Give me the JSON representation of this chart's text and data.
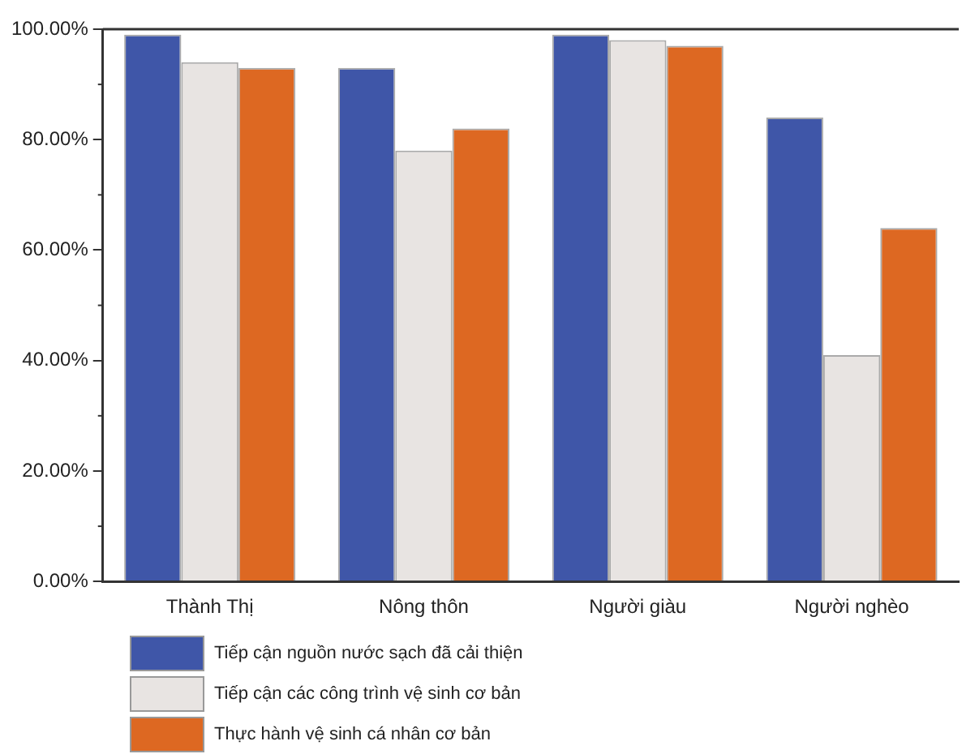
{
  "chart_data": {
    "type": "bar",
    "categories": [
      "Thành Thị",
      "Nông thôn",
      "Người giàu",
      "Người nghèo"
    ],
    "series": [
      {
        "name": "Tiếp cận nguồn nước sạch đã cải thiện",
        "color": "#3f56a8",
        "values": [
          99,
          93,
          99,
          84
        ]
      },
      {
        "name": "Tiếp cận các công trình vệ sinh cơ bản",
        "color": "#e8e4e2",
        "values": [
          94,
          78,
          98,
          41
        ]
      },
      {
        "name": "Thực hành vệ sinh cá nhân cơ bản",
        "color": "#dd6822",
        "values": [
          93,
          82,
          97,
          64
        ]
      }
    ],
    "ylim": [
      0,
      100
    ],
    "yticks": [
      {
        "value": 0,
        "label": "0.00%"
      },
      {
        "value": 20,
        "label": "20.00%"
      },
      {
        "value": 40,
        "label": "40.00%"
      },
      {
        "value": 60,
        "label": "60.00%"
      },
      {
        "value": 80,
        "label": "80.00%"
      },
      {
        "value": 100,
        "label": "100.00%"
      }
    ],
    "grid": false,
    "legend": "bottom"
  }
}
